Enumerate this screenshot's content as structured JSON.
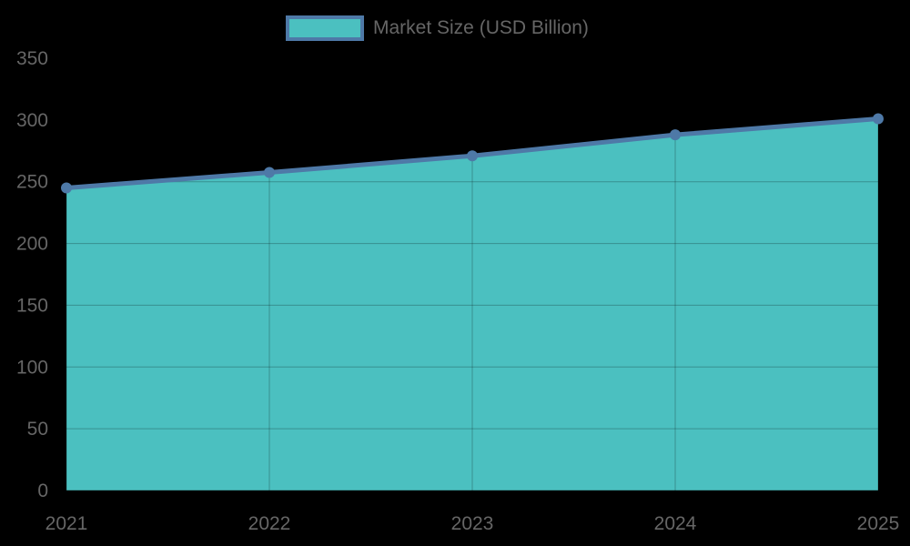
{
  "chart_data": {
    "type": "area",
    "title": "",
    "categories": [
      "2021",
      "2022",
      "2023",
      "2024",
      "2025"
    ],
    "series": [
      {
        "name": "Market Size (USD Billion)",
        "values": [
          245,
          257.5,
          271,
          288,
          301
        ]
      }
    ],
    "xlabel": "",
    "ylabel": "",
    "ylim": [
      0,
      350
    ],
    "yticks": [
      0,
      50,
      100,
      150,
      200,
      250,
      300,
      350
    ],
    "grid": true,
    "legend_position": "top",
    "colors": {
      "fill": "#4bc0c0",
      "line": "#4e79a7",
      "grid": "#2f6f6f",
      "text": "#666666",
      "background": "#000000"
    }
  },
  "legend": {
    "label": "Market Size (USD Billion)"
  }
}
